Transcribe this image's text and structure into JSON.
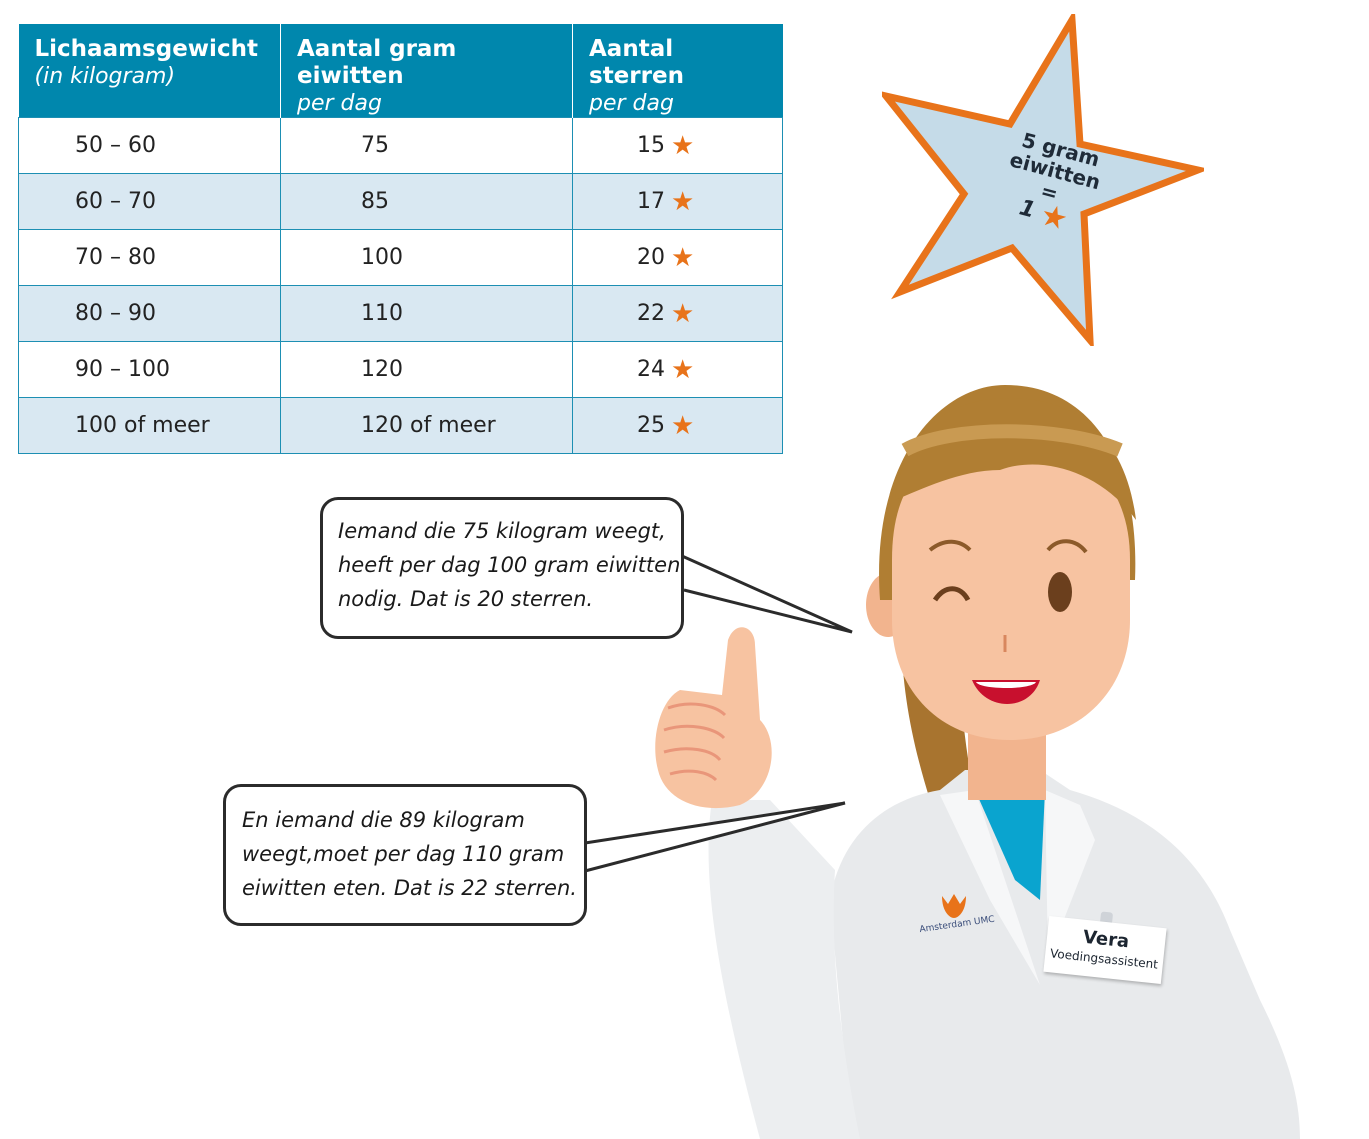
{
  "table": {
    "headers": [
      {
        "title": "Lichaamsgewicht",
        "sub": "(in kilogram)"
      },
      {
        "title": "Aantal gram eiwitten",
        "sub": "per dag"
      },
      {
        "title": "Aantal sterren",
        "sub": "per dag"
      }
    ],
    "rows": [
      {
        "weight": "50 – 60",
        "grams": "75",
        "stars": "15"
      },
      {
        "weight": "60 – 70",
        "grams": "85",
        "stars": "17"
      },
      {
        "weight": "70 – 80",
        "grams": "100",
        "stars": "20"
      },
      {
        "weight": "80 – 90",
        "grams": "110",
        "stars": "22"
      },
      {
        "weight": "90 – 100",
        "grams": "120",
        "stars": "24"
      },
      {
        "weight": "100 of meer",
        "grams": "120 of meer",
        "stars": "25"
      }
    ],
    "star_glyph": "★"
  },
  "badge": {
    "line1": "5 gram",
    "line2": "eiwitten",
    "line3": "=",
    "line4": "1",
    "star_glyph": "★"
  },
  "bubble1": {
    "lines": [
      "Iemand die 75 kilogram weegt,",
      "heeft per dag 100 gram eiwitten",
      "nodig. Dat is 20 sterren."
    ]
  },
  "bubble2": {
    "lines": [
      "En iemand die 89 kilogram",
      "weegt,moet per dag 110 gram",
      "eiwitten eten. Dat is 22 sterren."
    ]
  },
  "person": {
    "name": "Vera",
    "role": "Voedingsassistent",
    "logo_text": "Amsterdam UMC"
  },
  "colors": {
    "header_blue": "#0087ad",
    "row_alt": "#d9e8f2",
    "star_orange": "#e8731a",
    "badge_fill": "#c5dbe8"
  }
}
